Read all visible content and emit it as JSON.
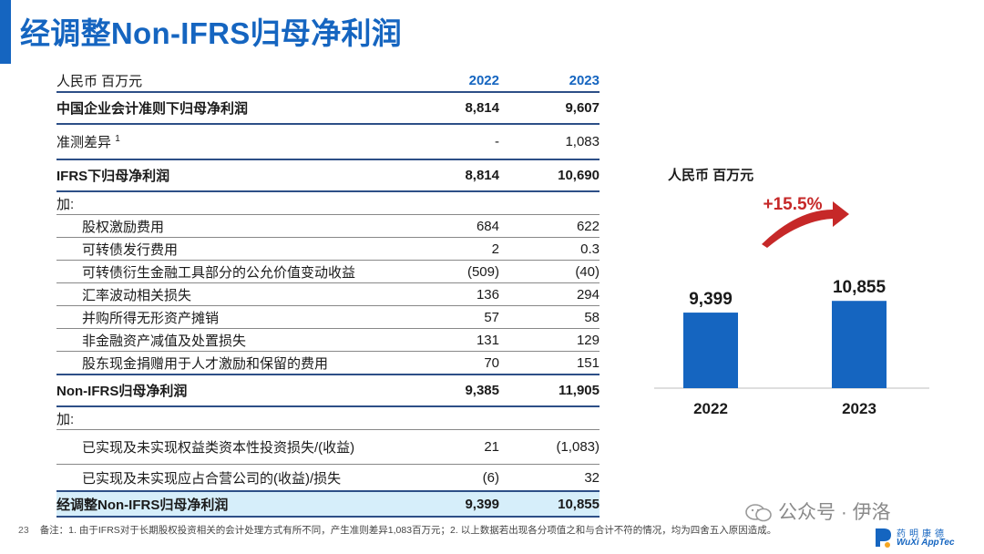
{
  "slide": {
    "title": "经调整Non-IFRS归母净利润",
    "page_number": "23"
  },
  "table": {
    "header": {
      "unit": "人民币 百万元",
      "col1": "2022",
      "col2": "2023"
    },
    "rows": [
      {
        "label": "中国企业会计准则下归母净利润",
        "v2022": "8,814",
        "v2023": "9,607"
      },
      {
        "label": "准测差异",
        "sup": "1",
        "v2022": "-",
        "v2023": "1,083"
      },
      {
        "label": "IFRS下归母净利润",
        "v2022": "8,814",
        "v2023": "10,690"
      },
      {
        "label": "加:",
        "v2022": "",
        "v2023": ""
      },
      {
        "label": "股权激励费用",
        "v2022": "684",
        "v2023": "622"
      },
      {
        "label": "可转债发行费用",
        "v2022": "2",
        "v2023": "0.3"
      },
      {
        "label": "可转债衍生金融工具部分的公允价值变动收益",
        "v2022": "(509)",
        "v2023": "(40)"
      },
      {
        "label": "汇率波动相关损失",
        "v2022": "136",
        "v2023": "294"
      },
      {
        "label": "并购所得无形资产摊销",
        "v2022": "57",
        "v2023": "58"
      },
      {
        "label": "非金融资产减值及处置损失",
        "v2022": "131",
        "v2023": "129"
      },
      {
        "label": "股东现金捐赠用于人才激励和保留的费用",
        "v2022": "70",
        "v2023": "151"
      },
      {
        "label": "Non-IFRS归母净利润",
        "v2022": "9,385",
        "v2023": "11,905"
      },
      {
        "label": "加:",
        "v2022": "",
        "v2023": ""
      },
      {
        "label": "已实现及未实现权益类资本性投资损失/(收益)",
        "v2022": "21",
        "v2023": "(1,083)"
      },
      {
        "label": "已实现及未实现应占合营公司的(收益)/损失",
        "v2022": "(6)",
        "v2023": "32"
      },
      {
        "label": "经调整Non-IFRS归母净利润",
        "v2022": "9,399",
        "v2023": "10,855"
      }
    ]
  },
  "chart_data": {
    "type": "bar",
    "unit_label": "人民币 百万元",
    "categories": [
      "2022",
      "2023"
    ],
    "values": [
      9399,
      10855
    ],
    "value_labels": [
      "9,399",
      "10,855"
    ],
    "growth_label": "+15.5%",
    "bar_color": "#1565C0",
    "arrow_color": "#C62828"
  },
  "footnote": {
    "text": "备注：1. 由于IFRS对于长期股权投资相关的会计处理方式有所不同，产生准则差异1,083百万元；2. 以上数据若出现各分项值之和与合计不符的情况，均为四舍五入原因造成。"
  },
  "watermark": {
    "text": "公众号 · 伊洛"
  },
  "logo": {
    "cn": "药明康德",
    "en": "WuXi AppTec"
  },
  "colors": {
    "accent": "#1565C0",
    "highlight_row": "#d6eefa",
    "rule": "#2d4f87"
  }
}
